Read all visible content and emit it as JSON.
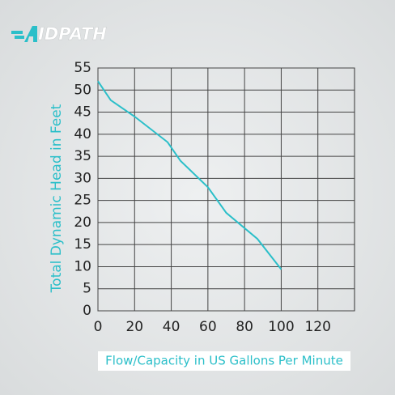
{
  "logo": "IDPATH",
  "chart_data": {
    "type": "line",
    "xlabel": "Flow/Capacity in US Gallons Per Minute",
    "ylabel": "Total Dynamic Head in Feet",
    "x": [
      0,
      7,
      20,
      38,
      45,
      60,
      70,
      87,
      100
    ],
    "series": [
      {
        "color": "#2bbfc9",
        "values": [
          52,
          47.7,
          44,
          38.2,
          34,
          28,
          22.2,
          16.3,
          9.4
        ]
      }
    ],
    "xlim": [
      0,
      140
    ],
    "xticks": [
      0,
      20,
      40,
      60,
      80,
      100,
      120
    ],
    "ylim": [
      0,
      55
    ],
    "yticks": [
      0,
      5,
      10,
      15,
      20,
      25,
      30,
      35,
      40,
      45,
      50,
      55
    ],
    "grid": true
  }
}
